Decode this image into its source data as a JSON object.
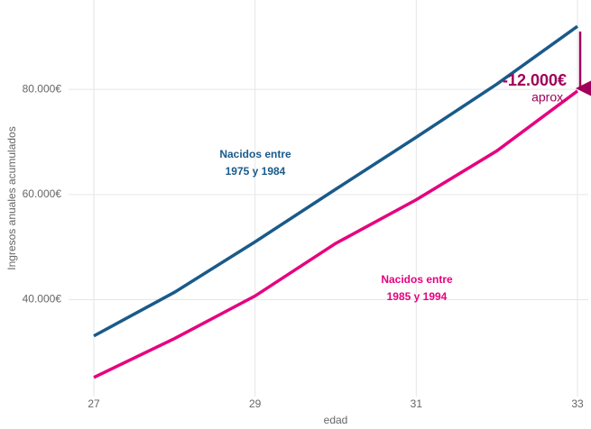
{
  "chart_data": {
    "type": "line",
    "x_label": "edad",
    "y_label": "Ingresos anuales acumulados",
    "x": [
      27,
      28,
      29,
      30,
      31,
      32,
      33
    ],
    "series": [
      {
        "name": "Nacidos entre 1975 y 1984",
        "color": "#1a5a8a",
        "values": [
          33100,
          41400,
          51000,
          61000,
          70900,
          81000,
          92000
        ]
      },
      {
        "name": "Nacidos entre 1985 y 1994",
        "color": "#e6007e",
        "values": [
          25200,
          32600,
          40700,
          50700,
          59000,
          68300,
          79700
        ]
      }
    ],
    "xlim": [
      27,
      33
    ],
    "xticks": [
      27,
      29,
      31,
      33
    ],
    "ylim": [
      19000,
      97000
    ],
    "yticks": [
      {
        "value": 40000,
        "label": "40.000€"
      },
      {
        "value": 60000,
        "label": "60.000€"
      },
      {
        "value": 80000,
        "label": "80.000€"
      }
    ],
    "grid": true,
    "annotations": [
      {
        "lines": [
          "Nacidos entre",
          "1975 y 1984"
        ],
        "color": "#1a5a8a"
      },
      {
        "lines": [
          "Nacidos entre",
          "1985 y 1994"
        ],
        "color": "#e6007e"
      },
      {
        "lines": [
          "-12.000€",
          "aprox."
        ],
        "color": "#a0005a"
      }
    ]
  }
}
